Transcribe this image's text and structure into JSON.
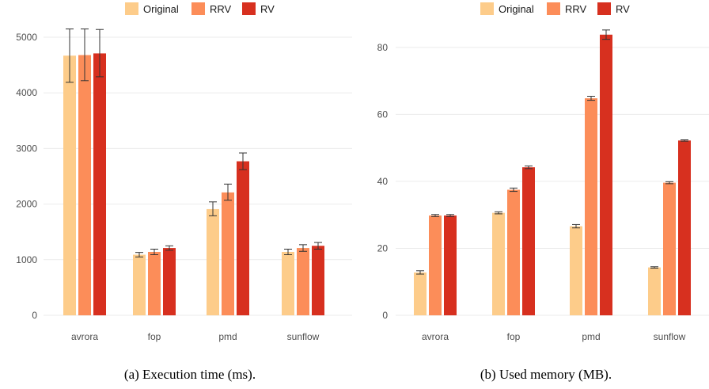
{
  "legend": [
    "Original",
    "RRV",
    "RV"
  ],
  "colors": {
    "Original": "#fdcc8a",
    "RRV": "#fc8d59",
    "RV": "#d7301f",
    "grid": "#ebebeb",
    "errorbar": "#333333"
  },
  "chart_data": [
    {
      "type": "bar",
      "caption": "(a) Execution time (ms).",
      "categories": [
        "avrora",
        "fop",
        "pmd",
        "sunflow"
      ],
      "ylim": [
        0,
        5300
      ],
      "yticks": [
        0,
        1000,
        2000,
        3000,
        4000,
        5000
      ],
      "grid": true,
      "legend_position": "top",
      "series": [
        {
          "name": "Original",
          "values": [
            4670,
            1090,
            1910,
            1140
          ],
          "err_low": [
            4190,
            1050,
            1790,
            1090
          ],
          "err_high": [
            5150,
            1130,
            2040,
            1190
          ]
        },
        {
          "name": "RRV",
          "values": [
            4680,
            1140,
            2210,
            1210
          ],
          "err_low": [
            4220,
            1090,
            2070,
            1150
          ],
          "err_high": [
            5150,
            1190,
            2360,
            1270
          ]
        },
        {
          "name": "RV",
          "values": [
            4710,
            1210,
            2770,
            1250
          ],
          "err_low": [
            4290,
            1170,
            2620,
            1190
          ],
          "err_high": [
            5140,
            1250,
            2920,
            1310
          ]
        }
      ]
    },
    {
      "type": "bar",
      "caption": "(b) Used memory (MB).",
      "categories": [
        "avrora",
        "fop",
        "pmd",
        "sunflow"
      ],
      "ylim": [
        0,
        88
      ],
      "yticks": [
        0,
        20,
        40,
        60,
        80
      ],
      "grid": true,
      "legend_position": "top",
      "series": [
        {
          "name": "Original",
          "values": [
            12.8,
            30.6,
            26.6,
            14.3
          ],
          "err_low": [
            12.3,
            30.3,
            26.1,
            14.1
          ],
          "err_high": [
            13.3,
            30.9,
            27.1,
            14.5
          ]
        },
        {
          "name": "RRV",
          "values": [
            29.8,
            37.5,
            64.8,
            39.6
          ],
          "err_low": [
            29.5,
            37.0,
            64.2,
            39.3
          ],
          "err_high": [
            30.1,
            38.0,
            65.4,
            39.9
          ]
        },
        {
          "name": "RV",
          "values": [
            29.8,
            44.2,
            83.8,
            52.2
          ],
          "err_low": [
            29.5,
            43.8,
            82.4,
            52.0
          ],
          "err_high": [
            30.1,
            44.6,
            85.2,
            52.4
          ]
        }
      ]
    }
  ]
}
